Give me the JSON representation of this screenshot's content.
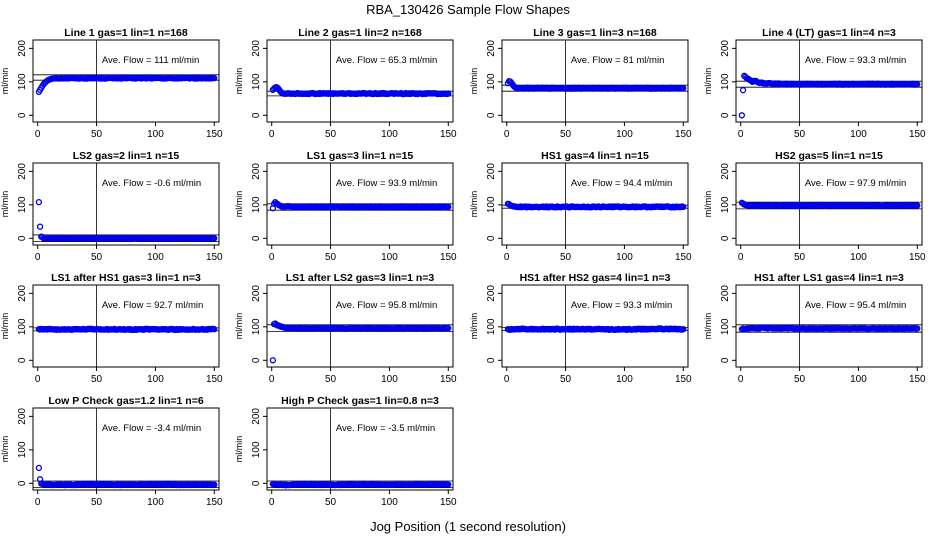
{
  "figure": {
    "title": "RBA_130426  Sample Flow Shapes",
    "xlabel": "Jog Position (1 second resolution)"
  },
  "chart_data": [
    {
      "type": "scatter",
      "title": "Line 1 gas=1 lin=1 n=168",
      "ylabel": "ml/min",
      "annotation": "Ave. Flow =  111  ml/min",
      "xlim": [
        0,
        150
      ],
      "ylim": [
        0,
        200
      ],
      "xticks": [
        0,
        50,
        100,
        150
      ],
      "yticks": [
        0,
        100,
        200
      ],
      "vline_x": 50,
      "hlines": [
        105,
        121
      ],
      "series": [
        {
          "color": "#0000ee",
          "points": [
            [
              1,
              70
            ],
            [
              2,
              76
            ],
            [
              3,
              82
            ],
            [
              4,
              88
            ],
            [
              5,
              93
            ],
            [
              6,
              97
            ],
            [
              7,
              100
            ],
            [
              8,
              103
            ],
            [
              9,
              105
            ],
            [
              10,
              107
            ],
            [
              11,
              108
            ],
            [
              12,
              109
            ],
            [
              13,
              110
            ],
            [
              14,
              110
            ],
            [
              15,
              111
            ],
            [
              20,
              111
            ],
            [
              30,
              111
            ],
            [
              50,
              111
            ],
            [
              75,
              111
            ],
            [
              100,
              111
            ],
            [
              125,
              111
            ],
            [
              150,
              111
            ]
          ]
        }
      ]
    },
    {
      "type": "scatter",
      "title": "Line 2 gas=1 lin=2 n=168",
      "ylabel": "ml/min",
      "annotation": "Ave. Flow =  65.3  ml/min",
      "xlim": [
        0,
        150
      ],
      "ylim": [
        0,
        200
      ],
      "xticks": [
        0,
        50,
        100,
        150
      ],
      "yticks": [
        0,
        100,
        200
      ],
      "vline_x": 50,
      "hlines": [
        58,
        72
      ],
      "series": [
        {
          "color": "#0000ee",
          "points": [
            [
              1,
              76
            ],
            [
              2,
              80
            ],
            [
              3,
              83
            ],
            [
              4,
              84
            ],
            [
              5,
              82
            ],
            [
              6,
              78
            ],
            [
              7,
              73
            ],
            [
              8,
              69
            ],
            [
              9,
              66
            ],
            [
              10,
              65
            ],
            [
              15,
              65
            ],
            [
              30,
              65
            ],
            [
              50,
              65
            ],
            [
              75,
              65
            ],
            [
              100,
              65
            ],
            [
              125,
              65
            ],
            [
              150,
              65
            ]
          ]
        }
      ]
    },
    {
      "type": "scatter",
      "title": "Line 3 gas=1 lin=3 n=168",
      "ylabel": "ml/min",
      "annotation": "Ave. Flow =  81  ml/min",
      "xlim": [
        0,
        150
      ],
      "ylim": [
        0,
        200
      ],
      "xticks": [
        0,
        50,
        100,
        150
      ],
      "yticks": [
        0,
        100,
        200
      ],
      "vline_x": 50,
      "hlines": [
        72,
        90
      ],
      "series": [
        {
          "color": "#0000ee",
          "points": [
            [
              1,
              96
            ],
            [
              2,
              102
            ],
            [
              3,
              101
            ],
            [
              4,
              97
            ],
            [
              5,
              92
            ],
            [
              6,
              87
            ],
            [
              7,
              84
            ],
            [
              8,
              82
            ],
            [
              9,
              81
            ],
            [
              12,
              81
            ],
            [
              25,
              81
            ],
            [
              50,
              81
            ],
            [
              75,
              81
            ],
            [
              100,
              81
            ],
            [
              125,
              81
            ],
            [
              150,
              81
            ]
          ]
        }
      ]
    },
    {
      "type": "scatter",
      "title": "Line 4 (LT) gas=1 lin=4 n=3",
      "ylabel": "ml/min",
      "annotation": "Ave. Flow =  93.3  ml/min",
      "xlim": [
        0,
        150
      ],
      "ylim": [
        0,
        200
      ],
      "xticks": [
        0,
        50,
        100,
        150
      ],
      "yticks": [
        0,
        100,
        200
      ],
      "vline_x": 50,
      "hlines": [
        84,
        102
      ],
      "series": [
        {
          "color": "#0000ee",
          "points": [
            [
              1,
              0
            ],
            [
              2,
              75
            ],
            [
              3,
              118
            ],
            [
              4,
              115
            ],
            [
              6,
              110
            ],
            [
              8,
              105
            ],
            [
              10,
              100
            ],
            [
              12,
              103
            ],
            [
              15,
              98
            ],
            [
              20,
              96
            ],
            [
              30,
              94
            ],
            [
              50,
              93
            ],
            [
              75,
              93
            ],
            [
              100,
              93
            ],
            [
              125,
              93
            ],
            [
              150,
              93
            ]
          ]
        }
      ]
    },
    {
      "type": "scatter",
      "title": "LS2 gas=2 lin=1 n=15",
      "ylabel": "ml/min",
      "annotation": "Ave. Flow =  -0.6  ml/min",
      "xlim": [
        0,
        150
      ],
      "ylim": [
        0,
        200
      ],
      "xticks": [
        0,
        50,
        100,
        150
      ],
      "yticks": [
        0,
        100,
        200
      ],
      "vline_x": 50,
      "hlines": [
        -10,
        10
      ],
      "series": [
        {
          "color": "#0000ee",
          "points": [
            [
              1,
              108
            ],
            [
              2,
              35
            ],
            [
              3,
              5
            ],
            [
              5,
              0
            ],
            [
              10,
              0
            ],
            [
              25,
              0
            ],
            [
              50,
              0
            ],
            [
              75,
              0
            ],
            [
              100,
              0
            ],
            [
              125,
              0
            ],
            [
              150,
              0
            ]
          ]
        }
      ]
    },
    {
      "type": "scatter",
      "title": "LS1 gas=3 lin=1 n=15",
      "ylabel": "ml/min",
      "annotation": "Ave. Flow =  93.9  ml/min",
      "xlim": [
        0,
        150
      ],
      "ylim": [
        0,
        200
      ],
      "xticks": [
        0,
        50,
        100,
        150
      ],
      "yticks": [
        0,
        100,
        200
      ],
      "vline_x": 50,
      "hlines": [
        84,
        103
      ],
      "series": [
        {
          "color": "#0000ee",
          "points": [
            [
              1,
              90
            ],
            [
              2,
              103
            ],
            [
              3,
              108
            ],
            [
              4,
              104
            ],
            [
              6,
              99
            ],
            [
              8,
              96
            ],
            [
              10,
              95
            ],
            [
              20,
              94
            ],
            [
              35,
              94
            ],
            [
              50,
              94
            ],
            [
              75,
              94
            ],
            [
              100,
              94
            ],
            [
              125,
              94
            ],
            [
              150,
              94
            ]
          ]
        }
      ]
    },
    {
      "type": "scatter",
      "title": "HS1 gas=4 lin=1 n=15",
      "ylabel": "ml/min",
      "annotation": "Ave. Flow =  94.4  ml/min",
      "xlim": [
        0,
        150
      ],
      "ylim": [
        0,
        200
      ],
      "xticks": [
        0,
        50,
        100,
        150
      ],
      "yticks": [
        0,
        100,
        200
      ],
      "vline_x": 50,
      "hlines": [
        90,
        99
      ],
      "series": [
        {
          "color": "#0000ee",
          "points": [
            [
              1,
              103
            ],
            [
              2,
              102
            ],
            [
              3,
              99
            ],
            [
              4,
              97
            ],
            [
              6,
              95
            ],
            [
              10,
              94
            ],
            [
              25,
              94
            ],
            [
              50,
              94
            ],
            [
              75,
              94
            ],
            [
              100,
              94
            ],
            [
              125,
              94
            ],
            [
              150,
              94
            ]
          ]
        }
      ]
    },
    {
      "type": "scatter",
      "title": "HS2 gas=5 lin=1 n=15",
      "ylabel": "ml/min",
      "annotation": "Ave. Flow =  97.9  ml/min",
      "xlim": [
        0,
        150
      ],
      "ylim": [
        0,
        200
      ],
      "xticks": [
        0,
        50,
        100,
        150
      ],
      "yticks": [
        0,
        100,
        200
      ],
      "vline_x": 50,
      "hlines": [
        88,
        108
      ],
      "series": [
        {
          "color": "#0000ee",
          "points": [
            [
              1,
              106
            ],
            [
              2,
              104
            ],
            [
              3,
              101
            ],
            [
              5,
              99
            ],
            [
              8,
              98
            ],
            [
              15,
              98
            ],
            [
              30,
              98
            ],
            [
              50,
              98
            ],
            [
              75,
              98
            ],
            [
              100,
              98
            ],
            [
              125,
              98
            ],
            [
              150,
              98
            ]
          ]
        }
      ]
    },
    {
      "type": "scatter",
      "title": "LS1 after HS1 gas=3 lin=1 n=3",
      "ylabel": "ml/min",
      "annotation": "Ave. Flow =  92.7  ml/min",
      "xlim": [
        0,
        150
      ],
      "ylim": [
        0,
        200
      ],
      "xticks": [
        0,
        50,
        100,
        150
      ],
      "yticks": [
        0,
        100,
        200
      ],
      "vline_x": 50,
      "hlines": [
        88,
        97
      ],
      "series": [
        {
          "color": "#0000ee",
          "points": [
            [
              1,
              93
            ],
            [
              5,
              92
            ],
            [
              10,
              93
            ],
            [
              25,
              92
            ],
            [
              50,
              93
            ],
            [
              75,
              92
            ],
            [
              100,
              93
            ],
            [
              125,
              92
            ],
            [
              150,
              93
            ]
          ]
        }
      ]
    },
    {
      "type": "scatter",
      "title": "LS1 after LS2 gas=3 lin=1 n=3",
      "ylabel": "ml/min",
      "annotation": "Ave. Flow =  95.8  ml/min",
      "xlim": [
        0,
        150
      ],
      "ylim": [
        0,
        200
      ],
      "xticks": [
        0,
        50,
        100,
        150
      ],
      "yticks": [
        0,
        100,
        200
      ],
      "vline_x": 50,
      "hlines": [
        86,
        106
      ],
      "series": [
        {
          "color": "#0000ee",
          "points": [
            [
              1,
              0
            ],
            [
              2,
              108
            ],
            [
              3,
              110
            ],
            [
              5,
              104
            ],
            [
              8,
              100
            ],
            [
              12,
              97
            ],
            [
              20,
              96
            ],
            [
              35,
              96
            ],
            [
              50,
              96
            ],
            [
              75,
              96
            ],
            [
              100,
              96
            ],
            [
              125,
              96
            ],
            [
              150,
              96
            ]
          ]
        }
      ]
    },
    {
      "type": "scatter",
      "title": "HS1 after HS2 gas=4 lin=1 n=3",
      "ylabel": "ml/min",
      "annotation": "Ave. Flow =  93.3  ml/min",
      "xlim": [
        0,
        150
      ],
      "ylim": [
        0,
        200
      ],
      "xticks": [
        0,
        50,
        100,
        150
      ],
      "yticks": [
        0,
        100,
        200
      ],
      "vline_x": 50,
      "hlines": [
        89,
        98
      ],
      "series": [
        {
          "color": "#0000ee",
          "points": [
            [
              1,
              93
            ],
            [
              5,
              92
            ],
            [
              10,
              94
            ],
            [
              25,
              93
            ],
            [
              50,
              93
            ],
            [
              75,
              93
            ],
            [
              100,
              92
            ],
            [
              125,
              94
            ],
            [
              150,
              93
            ]
          ]
        }
      ]
    },
    {
      "type": "scatter",
      "title": "HS1 after LS1 gas=4 lin=1 n=3",
      "ylabel": "ml/min",
      "annotation": "Ave. Flow =  95.4  ml/min",
      "xlim": [
        0,
        150
      ],
      "ylim": [
        0,
        200
      ],
      "xticks": [
        0,
        50,
        100,
        150
      ],
      "yticks": [
        0,
        100,
        200
      ],
      "vline_x": 50,
      "hlines": [
        84,
        106
      ],
      "series": [
        {
          "color": "#0000ee",
          "points": [
            [
              1,
              93
            ],
            [
              5,
              95
            ],
            [
              10,
              96
            ],
            [
              20,
              97
            ],
            [
              30,
              96
            ],
            [
              50,
              95
            ],
            [
              75,
              95
            ],
            [
              100,
              95
            ],
            [
              125,
              95
            ],
            [
              150,
              95
            ]
          ]
        }
      ]
    },
    {
      "type": "scatter",
      "title": "Low P Check gas=1.2 lin=1 n=6",
      "ylabel": "ml/min",
      "annotation": "Ave. Flow =  -3.4  ml/min",
      "xlim": [
        0,
        150
      ],
      "ylim": [
        0,
        200
      ],
      "xticks": [
        0,
        50,
        100,
        150
      ],
      "yticks": [
        0,
        100,
        200
      ],
      "vline_x": 50,
      "hlines": [
        -13,
        7
      ],
      "series": [
        {
          "color": "#0000ee",
          "points": [
            [
              1,
              46
            ],
            [
              2,
              12
            ],
            [
              3,
              -1
            ],
            [
              5,
              -3
            ],
            [
              10,
              -4
            ],
            [
              25,
              -4
            ],
            [
              50,
              -3
            ],
            [
              75,
              -4
            ],
            [
              100,
              -3
            ],
            [
              125,
              -4
            ],
            [
              150,
              -4
            ]
          ]
        }
      ]
    },
    {
      "type": "scatter",
      "title": "High P Check gas=1 lin=0.8 n=3",
      "ylabel": "ml/min",
      "annotation": "Ave. Flow =  -3.5  ml/min",
      "xlim": [
        0,
        150
      ],
      "ylim": [
        0,
        200
      ],
      "xticks": [
        0,
        50,
        100,
        150
      ],
      "yticks": [
        0,
        100,
        200
      ],
      "vline_x": 50,
      "hlines": [
        -13,
        7
      ],
      "series": [
        {
          "color": "#0000ee",
          "points": [
            [
              1,
              -2
            ],
            [
              5,
              -4
            ],
            [
              10,
              -5
            ],
            [
              25,
              -3
            ],
            [
              50,
              -4
            ],
            [
              75,
              -3
            ],
            [
              100,
              -4
            ],
            [
              125,
              -3
            ],
            [
              150,
              -4
            ]
          ]
        }
      ]
    }
  ]
}
